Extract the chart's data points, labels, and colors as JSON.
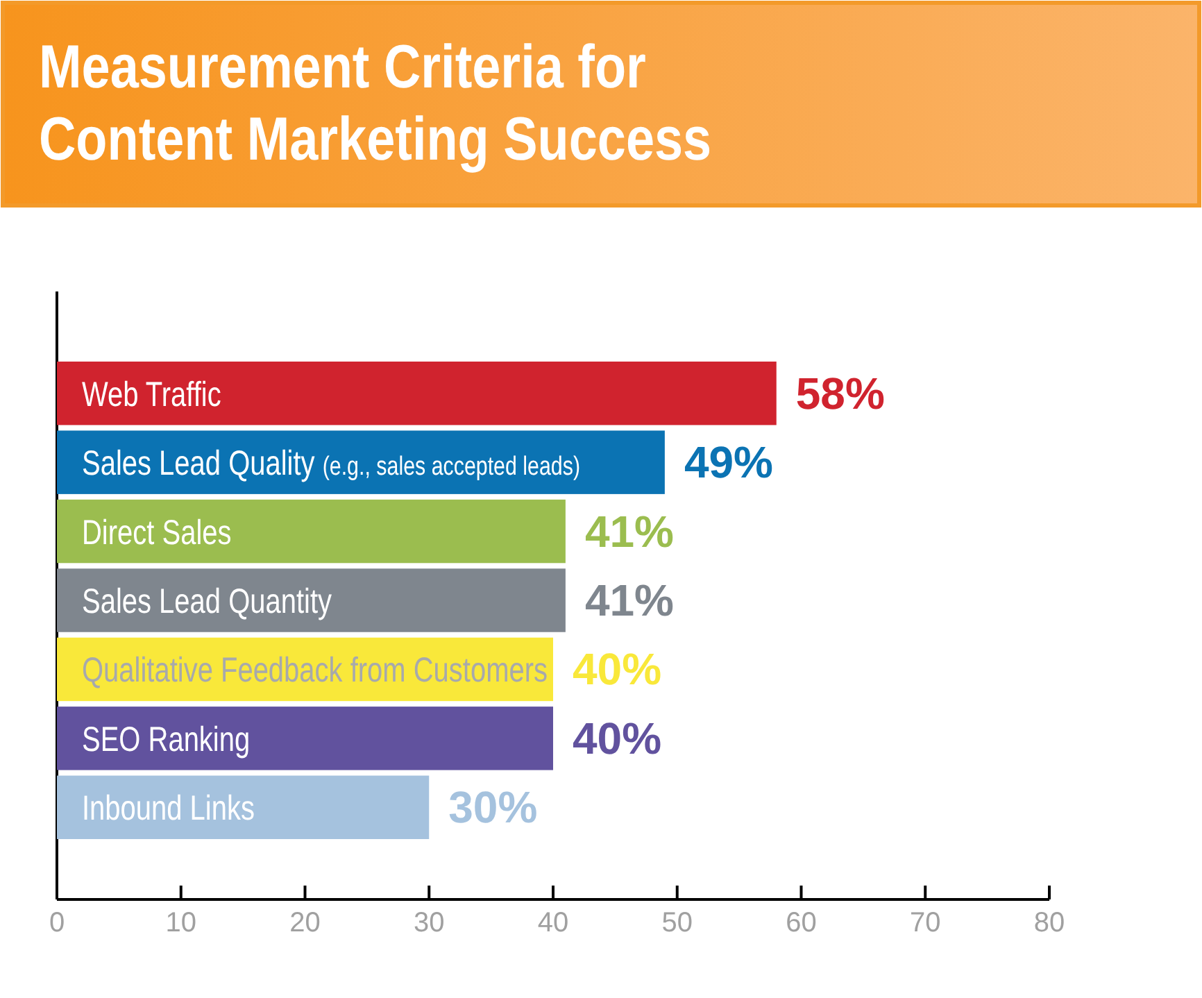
{
  "chart_data": {
    "type": "bar",
    "orientation": "horizontal",
    "title": "Measurement Criteria for Content Marketing Success",
    "categories": [
      "Web Traffic",
      "Sales Lead Quality (e.g., sales accepted leads)",
      "Direct Sales",
      "Sales Lead Quantity",
      "Qualitative Feedback from Customers",
      "SEO Ranking",
      "Inbound Links"
    ],
    "values": [
      58,
      49,
      41,
      41,
      40,
      40,
      30
    ],
    "colors": [
      "#d0232e",
      "#0b73b3",
      "#9bbd4f",
      "#7f868e",
      "#f9e83a",
      "#61529e",
      "#a5c2de"
    ],
    "value_labels": [
      "58%",
      "49%",
      "41%",
      "41%",
      "40%",
      "40%",
      "30%"
    ],
    "xlim": [
      0,
      80
    ],
    "xticks": [
      0,
      10,
      20,
      30,
      40,
      50,
      60,
      70,
      80
    ],
    "grid": false
  }
}
